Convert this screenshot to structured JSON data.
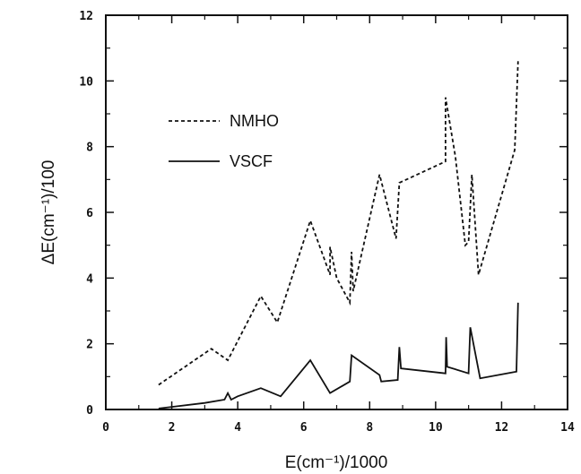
{
  "chart_data": {
    "type": "line",
    "xlabel": "E(cm⁻¹)/1000",
    "ylabel": "ΔE(cm⁻¹)/100",
    "xlim": [
      0,
      14
    ],
    "ylim": [
      0,
      12
    ],
    "x_ticks": [
      0,
      2,
      4,
      6,
      8,
      10,
      12,
      14
    ],
    "y_ticks": [
      0,
      2,
      4,
      6,
      8,
      10,
      12
    ],
    "grid": false,
    "legend_position": "upper-left",
    "series": [
      {
        "name": "NMHO",
        "style": "dashed",
        "color": "#111111",
        "points": [
          [
            1.6,
            0.75
          ],
          [
            3.2,
            1.85
          ],
          [
            3.7,
            1.5
          ],
          [
            4.7,
            3.45
          ],
          [
            5.2,
            2.65
          ],
          [
            6.2,
            5.75
          ],
          [
            6.8,
            4.1
          ],
          [
            6.8,
            4.95
          ],
          [
            7.0,
            4.0
          ],
          [
            7.4,
            3.25
          ],
          [
            7.45,
            4.8
          ],
          [
            7.5,
            3.6
          ],
          [
            8.3,
            7.15
          ],
          [
            8.8,
            5.2
          ],
          [
            8.9,
            6.9
          ],
          [
            10.3,
            7.55
          ],
          [
            10.3,
            9.5
          ],
          [
            10.6,
            7.7
          ],
          [
            10.9,
            5.0
          ],
          [
            11.0,
            5.1
          ],
          [
            11.1,
            7.15
          ],
          [
            11.3,
            4.1
          ],
          [
            12.4,
            7.9
          ],
          [
            12.5,
            10.6
          ]
        ]
      },
      {
        "name": "VSCF",
        "style": "solid",
        "color": "#111111",
        "points": [
          [
            1.6,
            0.03
          ],
          [
            2.0,
            0.08
          ],
          [
            3.0,
            0.2
          ],
          [
            3.6,
            0.3
          ],
          [
            3.7,
            0.5
          ],
          [
            3.8,
            0.3
          ],
          [
            4.0,
            0.4
          ],
          [
            4.7,
            0.65
          ],
          [
            5.3,
            0.4
          ],
          [
            6.2,
            1.5
          ],
          [
            6.8,
            0.5
          ],
          [
            7.4,
            0.85
          ],
          [
            7.45,
            1.65
          ],
          [
            8.3,
            1.05
          ],
          [
            8.35,
            0.85
          ],
          [
            8.85,
            0.9
          ],
          [
            8.9,
            1.9
          ],
          [
            8.95,
            1.25
          ],
          [
            10.3,
            1.1
          ],
          [
            10.32,
            2.2
          ],
          [
            10.35,
            1.3
          ],
          [
            11.0,
            1.1
          ],
          [
            11.05,
            2.5
          ],
          [
            11.35,
            0.95
          ],
          [
            12.45,
            1.15
          ],
          [
            12.5,
            3.25
          ]
        ]
      }
    ]
  }
}
